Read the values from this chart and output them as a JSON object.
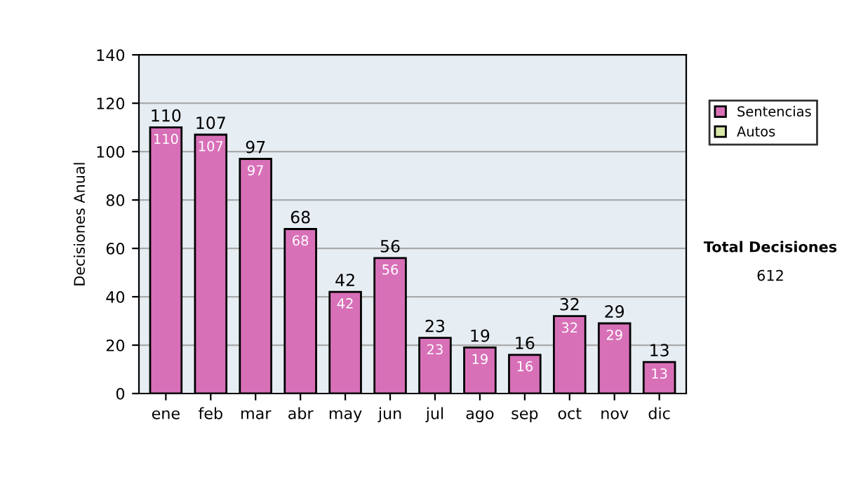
{
  "chart_data": {
    "type": "bar",
    "stacked": true,
    "ylabel": "Decisiones Anual",
    "categories": [
      "ene",
      "feb",
      "mar",
      "abr",
      "may",
      "jun",
      "jul",
      "ago",
      "sep",
      "oct",
      "nov",
      "dic"
    ],
    "series": [
      {
        "name": "Sentencias",
        "color": "#d870b8",
        "values": [
          110,
          107,
          97,
          68,
          42,
          56,
          23,
          19,
          16,
          32,
          29,
          13
        ],
        "value_labels": [
          "110",
          "107",
          "97",
          "68",
          "42",
          "56",
          "23",
          "19",
          "16",
          "32",
          "29",
          "13"
        ]
      },
      {
        "name": "Autos",
        "color": "#d8e8a8",
        "values": [
          null,
          null,
          null,
          null,
          null,
          null,
          null,
          null,
          null,
          null,
          null,
          null
        ]
      }
    ],
    "ylim": [
      0,
      140
    ],
    "yticks": [
      0,
      20,
      40,
      60,
      80,
      100,
      120,
      140
    ],
    "grid": "y",
    "legend": "right",
    "totals": [
      "110",
      "107",
      "97",
      "68",
      "42",
      "56",
      "23",
      "19",
      "16",
      "32",
      "29",
      "13"
    ],
    "annotations": [
      "Total Decisiones",
      "612"
    ]
  }
}
